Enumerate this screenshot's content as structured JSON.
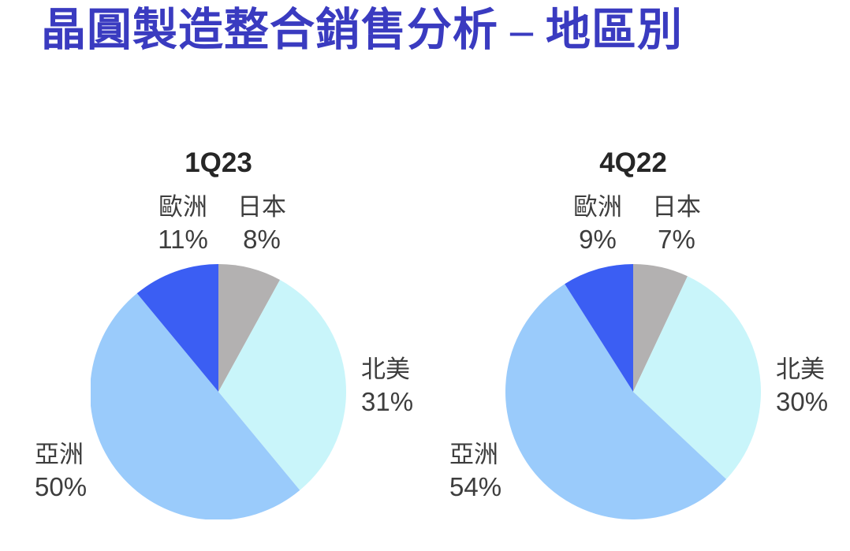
{
  "page": {
    "title": "晶圓製造整合銷售分析 – 地區別",
    "title_color": "#3A3BC0",
    "background": "#FFFFFF"
  },
  "chart_data": [
    {
      "type": "pie",
      "title": "1Q23",
      "direction": "clockwise",
      "start_angle_deg": 0,
      "legend_position": "around-pie",
      "segments": [
        {
          "region": "japan",
          "label": "日本",
          "value": 8,
          "pct": "8%",
          "color": "#B3B1B1"
        },
        {
          "region": "north-america",
          "label": "北美",
          "value": 31,
          "pct": "31%",
          "color": "#C9F5FA"
        },
        {
          "region": "asia",
          "label": "亞洲",
          "value": 50,
          "pct": "50%",
          "color": "#9ACBFB"
        },
        {
          "region": "europe",
          "label": "歐洲",
          "value": 11,
          "pct": "11%",
          "color": "#3B5EF3"
        }
      ]
    },
    {
      "type": "pie",
      "title": "4Q22",
      "direction": "clockwise",
      "start_angle_deg": 0,
      "legend_position": "around-pie",
      "segments": [
        {
          "region": "japan",
          "label": "日本",
          "value": 7,
          "pct": "7%",
          "color": "#B3B1B1"
        },
        {
          "region": "north-america",
          "label": "北美",
          "value": 30,
          "pct": "30%",
          "color": "#C9F5FA"
        },
        {
          "region": "asia",
          "label": "亞洲",
          "value": 54,
          "pct": "54%",
          "color": "#9ACBFB"
        },
        {
          "region": "europe",
          "label": "歐洲",
          "value": 9,
          "pct": "9%",
          "color": "#3B5EF3"
        }
      ]
    }
  ]
}
